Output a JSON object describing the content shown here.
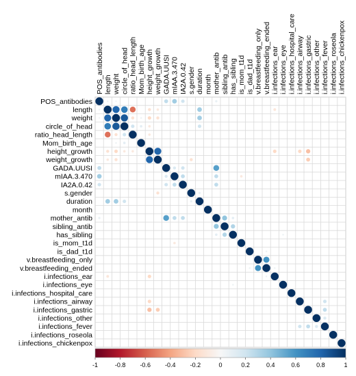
{
  "chart_data": {
    "type": "heatmap",
    "title": "",
    "variables": [
      "POS_antibodies",
      "length",
      "weight",
      "circle_of_head",
      "ratio_head_length",
      "Mom_birth_age",
      "height_growth",
      "weight_growth",
      "GADA.UUSI",
      "mIAA.3.470",
      "IA2A.0.42",
      "s.gender",
      "duration",
      "month",
      "mother_antib",
      "sibling_antib",
      "has_sibling",
      "is_mom_t1d",
      "is_dad_t1d",
      "v.breastfeeding_only",
      "v.breastfeeding_ended",
      "i.infections_ear",
      "i.infections_eye",
      "i.infections_hospital_care",
      "i.infections_airway",
      "i.infections_gastric",
      "i.infections_other",
      "i.infections_fever",
      "i.infections_roseola",
      "i.infections_chickenpox"
    ],
    "correlations": [
      [
        0,
        1,
        0.05
      ],
      [
        0,
        2,
        0.04
      ],
      [
        0,
        8,
        0.25
      ],
      [
        0,
        9,
        0.35
      ],
      [
        0,
        10,
        0.2
      ],
      [
        0,
        14,
        0.08
      ],
      [
        1,
        2,
        0.8
      ],
      [
        1,
        3,
        0.7
      ],
      [
        1,
        4,
        -0.55
      ],
      [
        1,
        12,
        0.35
      ],
      [
        1,
        6,
        -0.15
      ],
      [
        1,
        7,
        -0.1
      ],
      [
        2,
        3,
        0.85
      ],
      [
        2,
        4,
        -0.15
      ],
      [
        2,
        12,
        0.35
      ],
      [
        2,
        6,
        -0.2
      ],
      [
        2,
        7,
        -0.15
      ],
      [
        3,
        4,
        0.2
      ],
      [
        3,
        12,
        0.25
      ],
      [
        3,
        6,
        -0.1
      ],
      [
        6,
        7,
        0.8
      ],
      [
        6,
        21,
        -0.2
      ],
      [
        6,
        24,
        -0.2
      ],
      [
        6,
        25,
        -0.3
      ],
      [
        7,
        25,
        -0.25
      ],
      [
        8,
        9,
        0.15
      ],
      [
        8,
        10,
        0.2
      ],
      [
        8,
        14,
        0.55
      ],
      [
        9,
        10,
        0.25
      ],
      [
        9,
        14,
        0.25
      ],
      [
        10,
        14,
        0.25
      ],
      [
        11,
        12,
        0.08
      ],
      [
        11,
        7,
        -0.15
      ],
      [
        14,
        15,
        0.4
      ],
      [
        14,
        16,
        0.1
      ],
      [
        15,
        16,
        0.3
      ],
      [
        19,
        20,
        0.6
      ],
      [
        20,
        21,
        0.05
      ],
      [
        24,
        27,
        0.2
      ],
      [
        25,
        27,
        0.25
      ],
      [
        26,
        27,
        0.15
      ],
      [
        1,
        21,
        -0.12
      ],
      [
        16,
        22,
        0.05
      ],
      [
        17,
        9,
        -0.1
      ],
      [
        18,
        20,
        0.05
      ],
      [
        5,
        3,
        0.1
      ],
      [
        5,
        2,
        0.05
      ],
      [
        4,
        6,
        -0.1
      ],
      [
        12,
        3,
        0.2
      ]
    ],
    "colorbar": {
      "range": [
        -1,
        1
      ],
      "ticks": [
        -1,
        -0.8,
        -0.6,
        -0.4,
        -0.2,
        0,
        0.2,
        0.4,
        0.6,
        0.8,
        1
      ],
      "tick_labels": [
        "-1",
        "-0.8",
        "-0.6",
        "-0.4",
        "-0.2",
        "0",
        "0.2",
        "0.4",
        "0.6",
        "0.8",
        "1"
      ],
      "colors": [
        "#67001f",
        "#b2182b",
        "#d6604d",
        "#f4a582",
        "#fddbc7",
        "#f7f7f7",
        "#d1e5f0",
        "#92c5de",
        "#4393c3",
        "#2166ac",
        "#053061"
      ]
    },
    "grid": true,
    "legend": "bottom"
  }
}
